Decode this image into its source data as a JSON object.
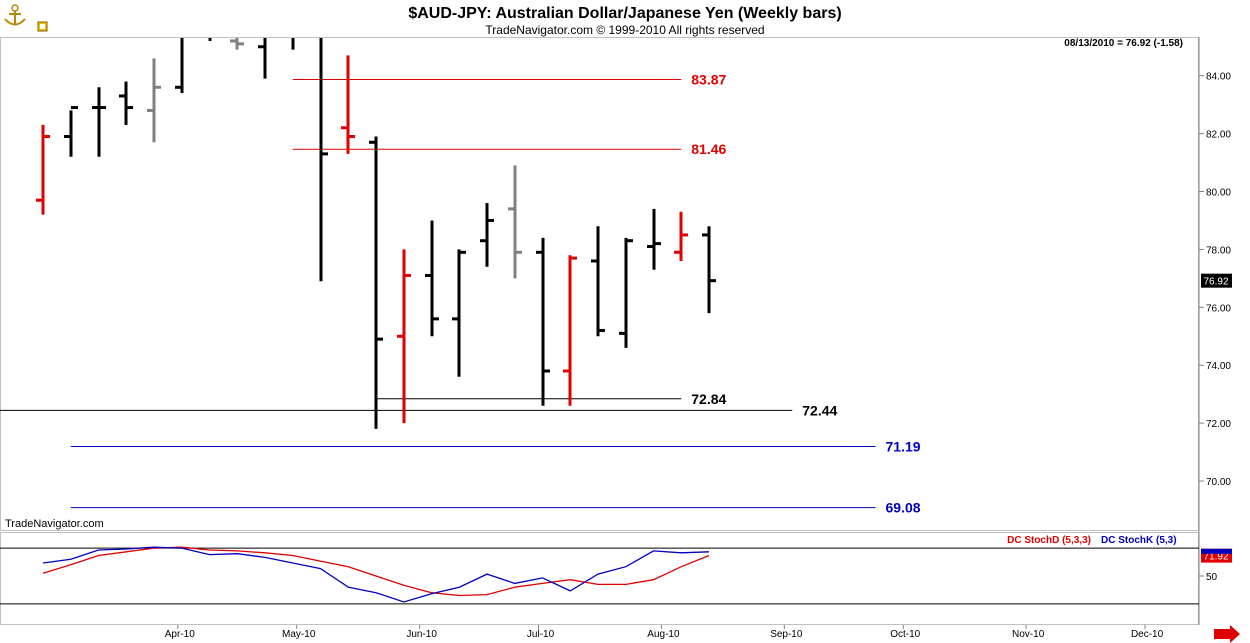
{
  "header": {
    "title": "$AUD-JPY:  Australian Dollar/Japanese Yen  (Weekly bars)",
    "subtitle": "TradeNavigator.com © 1999-2010 All rights reserved",
    "last_info": "08/13/2010 = 76.92 (-1.58)",
    "watermark": "TradeNavigator.com"
  },
  "colors": {
    "up": "#000000",
    "down": "#e00000",
    "neutral": "#808080",
    "resistance": "#e00000",
    "support": "#000000",
    "target": "#0000c0",
    "stochD": "#e00000",
    "stochK": "#0000c0"
  },
  "chart_data": [
    {
      "type": "ohlc",
      "title": "$AUD-JPY:  Australian Dollar/Japanese Yen  (Weekly bars)",
      "ylim": [
        68.5,
        85.5
      ],
      "y_ticks": [
        "70.00",
        "72.00",
        "74.00",
        "76.00",
        "78.00",
        "80.00",
        "82.00",
        "84.00"
      ],
      "x_ticks": [
        "Apr-10",
        "May-10",
        "Jun-10",
        "Jul-10",
        "Aug-10",
        "Sep-10",
        "Oct-10",
        "Nov-10",
        "Dec-10"
      ],
      "last_price_label": "76.92",
      "bars": [
        {
          "week": "2010-02-26",
          "open": 79.7,
          "high": 82.3,
          "low": 79.2,
          "close": 81.9,
          "color": "down"
        },
        {
          "week": "2010-03-05",
          "open": 81.9,
          "high": 82.8,
          "low": 81.2,
          "close": 82.9,
          "color": "up"
        },
        {
          "week": "2010-03-12",
          "open": 82.9,
          "high": 83.6,
          "low": 81.2,
          "close": 82.9,
          "color": "up"
        },
        {
          "week": "2010-03-19",
          "open": 83.3,
          "high": 83.8,
          "low": 82.3,
          "close": 82.9,
          "color": "up"
        },
        {
          "week": "2010-03-26",
          "open": 82.8,
          "high": 84.6,
          "low": 81.7,
          "close": 83.6,
          "color": "neutral"
        },
        {
          "week": "2010-04-02",
          "open": 83.6,
          "high": 86.0,
          "low": 83.4,
          "close": 85.7,
          "color": "up"
        },
        {
          "week": "2010-04-09",
          "open": 85.6,
          "high": 86.5,
          "low": 85.2,
          "close": 85.4,
          "color": "up"
        },
        {
          "week": "2010-04-16",
          "open": 85.2,
          "high": 86.2,
          "low": 84.9,
          "close": 85.1,
          "color": "neutral"
        },
        {
          "week": "2010-04-23",
          "open": 85.0,
          "high": 86.3,
          "low": 83.9,
          "close": 85.6,
          "color": "up"
        },
        {
          "week": "2010-04-30",
          "open": 85.6,
          "high": 86.5,
          "low": 84.9,
          "close": 85.4,
          "color": "up"
        },
        {
          "week": "2010-05-07",
          "open": 85.4,
          "high": 86.0,
          "low": 76.9,
          "close": 81.3,
          "color": "up"
        },
        {
          "week": "2010-05-14",
          "open": 82.2,
          "high": 84.7,
          "low": 81.3,
          "close": 81.9,
          "color": "down"
        },
        {
          "week": "2010-05-21",
          "open": 81.7,
          "high": 81.9,
          "low": 71.8,
          "close": 74.9,
          "color": "up"
        },
        {
          "week": "2010-05-28",
          "open": 75.0,
          "high": 78.0,
          "low": 72.0,
          "close": 77.1,
          "color": "down"
        },
        {
          "week": "2010-06-04",
          "open": 77.1,
          "high": 79.0,
          "low": 75.0,
          "close": 75.6,
          "color": "up"
        },
        {
          "week": "2010-06-11",
          "open": 75.6,
          "high": 78.0,
          "low": 73.6,
          "close": 77.9,
          "color": "up"
        },
        {
          "week": "2010-06-18",
          "open": 78.3,
          "high": 79.6,
          "low": 77.4,
          "close": 79.0,
          "color": "up"
        },
        {
          "week": "2010-06-25",
          "open": 79.4,
          "high": 80.9,
          "low": 77.0,
          "close": 77.9,
          "color": "neutral"
        },
        {
          "week": "2010-07-02",
          "open": 77.9,
          "high": 78.4,
          "low": 72.6,
          "close": 73.8,
          "color": "up"
        },
        {
          "week": "2010-07-09",
          "open": 73.8,
          "high": 77.8,
          "low": 72.6,
          "close": 77.7,
          "color": "down"
        },
        {
          "week": "2010-07-16",
          "open": 77.6,
          "high": 78.8,
          "low": 75.0,
          "close": 75.2,
          "color": "up"
        },
        {
          "week": "2010-07-23",
          "open": 75.1,
          "high": 78.4,
          "low": 74.6,
          "close": 78.3,
          "color": "up"
        },
        {
          "week": "2010-07-30",
          "open": 78.1,
          "high": 79.4,
          "low": 77.3,
          "close": 78.2,
          "color": "up"
        },
        {
          "week": "2010-08-06",
          "open": 77.9,
          "high": 79.3,
          "low": 77.6,
          "close": 78.5,
          "color": "down"
        },
        {
          "week": "2010-08-13",
          "open": 78.5,
          "high": 78.8,
          "low": 75.8,
          "close": 76.92,
          "color": "up"
        }
      ],
      "levels": [
        {
          "label": "83.87",
          "value": 83.87,
          "kind": "resistance",
          "from_week": "2010-04-30",
          "to_week": "2010-08-06"
        },
        {
          "label": "81.46",
          "value": 81.46,
          "kind": "resistance",
          "from_week": "2010-04-30",
          "to_week": "2010-08-06"
        },
        {
          "label": "72.84",
          "value": 72.84,
          "kind": "support",
          "from_week": "2010-05-21",
          "to_week": "2010-08-06"
        },
        {
          "label": "72.44",
          "value": 72.44,
          "kind": "support",
          "from_week": "2010-02-12",
          "to_week": "2010-09-03"
        },
        {
          "label": "71.19",
          "value": 71.19,
          "kind": "target",
          "from_week": "2010-03-05",
          "to_week": "2010-09-24"
        },
        {
          "label": "69.08",
          "value": 69.08,
          "kind": "target",
          "from_week": "2010-03-05",
          "to_week": "2010-09-24"
        }
      ]
    },
    {
      "type": "line",
      "ylim": [
        0,
        100
      ],
      "y_ticks": [
        "50"
      ],
      "ref_lines": [
        80,
        20
      ],
      "last_value_label": "71.92",
      "series": [
        {
          "name": "DC StochD (5,3,3)",
          "color_key": "stochD",
          "values": [
            53,
            62,
            72,
            76,
            80,
            81,
            78,
            77,
            75,
            72,
            66,
            60,
            50,
            40,
            32,
            29,
            30,
            38,
            42,
            46,
            41,
            41,
            46,
            60,
            72
          ]
        },
        {
          "name": "DC StochK (5,3,3)",
          "color_key": "stochK",
          "values": [
            64,
            68,
            78,
            79,
            81,
            80,
            73,
            74,
            70,
            64,
            58,
            38,
            32,
            22,
            31,
            38,
            52,
            42,
            48,
            34,
            52,
            60,
            77,
            75,
            76
          ]
        }
      ]
    }
  ]
}
